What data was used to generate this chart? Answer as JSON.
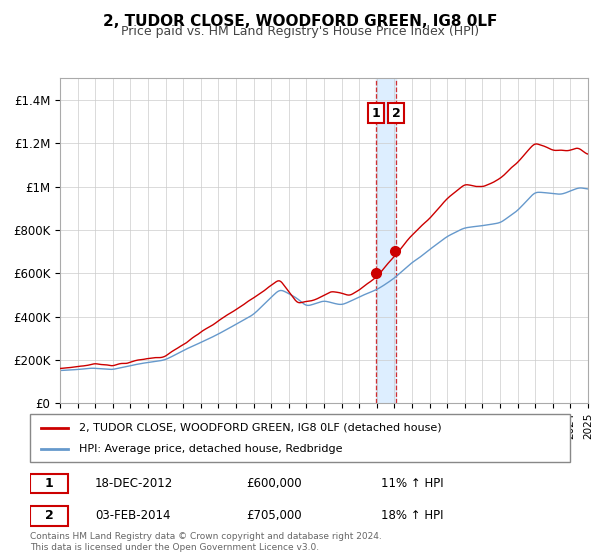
{
  "title": "2, TUDOR CLOSE, WOODFORD GREEN, IG8 0LF",
  "subtitle": "Price paid vs. HM Land Registry's House Price Index (HPI)",
  "legend_line1": "2, TUDOR CLOSE, WOODFORD GREEN, IG8 0LF (detached house)",
  "legend_line2": "HPI: Average price, detached house, Redbridge",
  "footer1": "Contains HM Land Registry data © Crown copyright and database right 2024.",
  "footer2": "This data is licensed under the Open Government Licence v3.0.",
  "transaction1_label": "1",
  "transaction1_date": "18-DEC-2012",
  "transaction1_price": "£600,000",
  "transaction1_hpi": "11% ↑ HPI",
  "transaction1_year": 2012.96,
  "transaction1_value": 600000,
  "transaction2_label": "2",
  "transaction2_date": "03-FEB-2014",
  "transaction2_price": "£705,000",
  "transaction2_hpi": "18% ↑ HPI",
  "transaction2_year": 2014.09,
  "transaction2_value": 705000,
  "red_color": "#cc0000",
  "blue_color": "#6699cc",
  "shade_color": "#ddeeff",
  "grid_color": "#cccccc",
  "bg_color": "#ffffff",
  "ylim_min": 0,
  "ylim_max": 1500000,
  "xlim_min": 1995,
  "xlim_max": 2025,
  "yticks": [
    0,
    200000,
    400000,
    600000,
    800000,
    1000000,
    1200000,
    1400000
  ],
  "ytick_labels": [
    "£0",
    "£200K",
    "£400K",
    "£600K",
    "£800K",
    "£1M",
    "£1.2M",
    "£1.4M"
  ]
}
